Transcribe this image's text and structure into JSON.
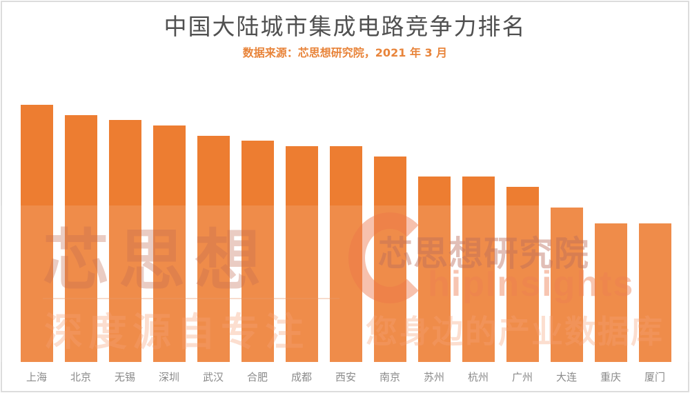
{
  "header": {
    "title": "中国大陆城市集成电路竞争力排名",
    "subtitle": "数据来源：芯思想研究院，2021 年 3 月"
  },
  "watermark": {
    "brand_cn": "芯思想",
    "slogan_left": "深度源自专注",
    "logo_letter": "C",
    "org_cn": "芯思想研究院",
    "org_en": "hipInsights",
    "slogan_right": "您身边的产业数据库"
  },
  "colors": {
    "bar": "#ed7d31",
    "subtitle": "#e8843a",
    "title": "#505050",
    "label": "#8a8a8a"
  },
  "chart_data": {
    "type": "bar",
    "title": "中国大陆城市集成电路竞争力排名",
    "subtitle": "数据来源：芯思想研究院，2021 年 3 月",
    "xlabel": "",
    "ylabel": "",
    "grid": false,
    "legend": "none",
    "y_axis_visible": false,
    "value_note": "No axis shown; values are relative bar heights scaled so 上海 = 100",
    "ylim": [
      0,
      100
    ],
    "categories": [
      "上海",
      "北京",
      "无锡",
      "深圳",
      "武汉",
      "合肥",
      "成都",
      "西安",
      "南京",
      "苏州",
      "杭州",
      "广州",
      "大连",
      "重庆",
      "厦门"
    ],
    "values": [
      100,
      96,
      94,
      92,
      88,
      86,
      84,
      84,
      80,
      72,
      72,
      68,
      60,
      54,
      54
    ]
  }
}
